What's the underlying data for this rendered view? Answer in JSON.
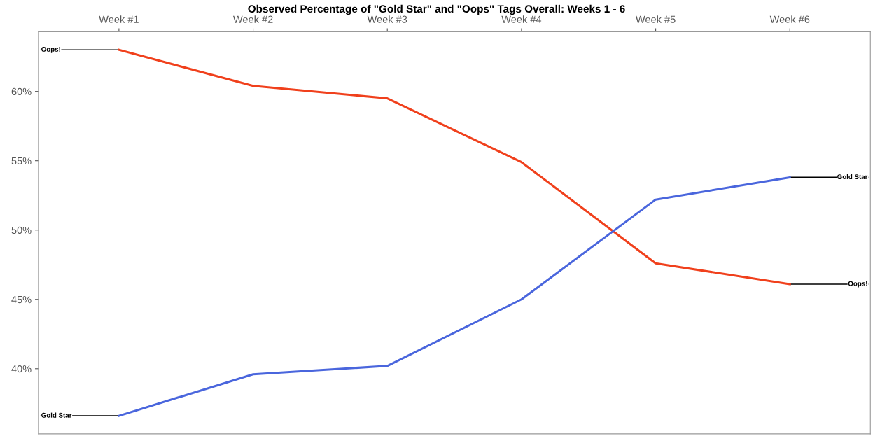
{
  "chart_data": {
    "type": "line",
    "title": "Observed Percentage of \"Gold Star\" and \"Oops\" Tags Overall: Weeks 1 - 6",
    "categories": [
      "Week #1",
      "Week #2",
      "Week #3",
      "Week #4",
      "Week #5",
      "Week #6"
    ],
    "series": [
      {
        "name": "Oops!",
        "color": "#f0401c",
        "values": [
          63.0,
          60.4,
          59.5,
          54.9,
          47.6,
          46.1
        ]
      },
      {
        "name": "Gold Star",
        "color": "#4a66dd",
        "values": [
          36.6,
          39.6,
          40.2,
          45.0,
          52.2,
          53.8
        ]
      }
    ],
    "ylim": [
      35.3,
      64.3
    ],
    "yticks": [
      {
        "value": 40,
        "label": "40%"
      },
      {
        "value": 45,
        "label": "45%"
      },
      {
        "value": 50,
        "label": "50%"
      },
      {
        "value": 55,
        "label": "55%"
      },
      {
        "value": 60,
        "label": "60%"
      }
    ],
    "grid": false,
    "legend": false,
    "marker": "none",
    "line_style": "solid"
  }
}
